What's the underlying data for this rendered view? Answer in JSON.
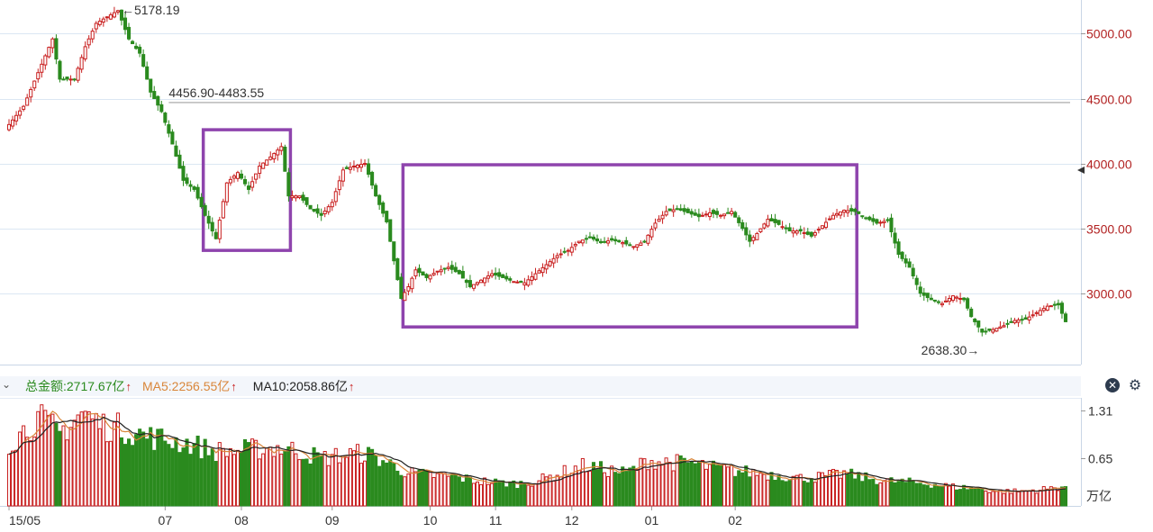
{
  "chart_data": {
    "type": "candlestick",
    "x_tick_labels": [
      "15/05",
      "07",
      "08",
      "09",
      "10",
      "11",
      "12",
      "01",
      "02"
    ],
    "y_tick_labels": [
      "3000.00",
      "3500.00",
      "4000.00",
      "4500.00",
      "5000.00"
    ],
    "y_ticks": [
      3000,
      3500,
      4000,
      4500,
      5000
    ],
    "ylim": [
      2450,
      5260
    ],
    "annotations": {
      "high": "←5178.19",
      "gap": "4456.90-4483.55",
      "low": "2638.30→"
    },
    "reference_line": 4470,
    "highlight_boxes": [
      {
        "from_day": 54,
        "to_day": 77,
        "low": 3330,
        "high": 4260
      },
      {
        "from_day": 109,
        "to_day": 233,
        "low": 2740,
        "high": 3990
      }
    ],
    "price_key_points": [
      [
        0,
        4300
      ],
      [
        4,
        4440
      ],
      [
        8,
        4700
      ],
      [
        12,
        4960
      ],
      [
        14,
        4650
      ],
      [
        18,
        4650
      ],
      [
        21,
        4900
      ],
      [
        24,
        5080
      ],
      [
        27,
        5130
      ],
      [
        30,
        5178
      ],
      [
        33,
        4960
      ],
      [
        36,
        4850
      ],
      [
        39,
        4550
      ],
      [
        42,
        4400
      ],
      [
        45,
        4150
      ],
      [
        48,
        3870
      ],
      [
        51,
        3800
      ],
      [
        54,
        3600
      ],
      [
        57,
        3420
      ],
      [
        60,
        3850
      ],
      [
        63,
        3930
      ],
      [
        66,
        3800
      ],
      [
        69,
        3980
      ],
      [
        72,
        4050
      ],
      [
        75,
        4130
      ],
      [
        77,
        3750
      ],
      [
        80,
        3750
      ],
      [
        83,
        3650
      ],
      [
        86,
        3600
      ],
      [
        89,
        3700
      ],
      [
        92,
        3950
      ],
      [
        95,
        3980
      ],
      [
        98,
        4000
      ],
      [
        101,
        3750
      ],
      [
        104,
        3550
      ],
      [
        106,
        3250
      ],
      [
        108,
        2960
      ],
      [
        110,
        3050
      ],
      [
        112,
        3180
      ],
      [
        115,
        3120
      ],
      [
        118,
        3170
      ],
      [
        121,
        3200
      ],
      [
        124,
        3150
      ],
      [
        127,
        3050
      ],
      [
        130,
        3100
      ],
      [
        133,
        3150
      ],
      [
        136,
        3120
      ],
      [
        139,
        3090
      ],
      [
        142,
        3080
      ],
      [
        145,
        3150
      ],
      [
        148,
        3220
      ],
      [
        151,
        3290
      ],
      [
        154,
        3330
      ],
      [
        157,
        3400
      ],
      [
        160,
        3430
      ],
      [
        163,
        3390
      ],
      [
        166,
        3410
      ],
      [
        169,
        3390
      ],
      [
        172,
        3360
      ],
      [
        175,
        3400
      ],
      [
        178,
        3540
      ],
      [
        181,
        3630
      ],
      [
        184,
        3650
      ],
      [
        187,
        3620
      ],
      [
        190,
        3590
      ],
      [
        193,
        3620
      ],
      [
        196,
        3600
      ],
      [
        199,
        3630
      ],
      [
        202,
        3500
      ],
      [
        204,
        3400
      ],
      [
        206,
        3460
      ],
      [
        209,
        3570
      ],
      [
        212,
        3530
      ],
      [
        215,
        3480
      ],
      [
        218,
        3480
      ],
      [
        221,
        3440
      ],
      [
        224,
        3520
      ],
      [
        227,
        3600
      ],
      [
        230,
        3640
      ],
      [
        233,
        3630
      ],
      [
        236,
        3580
      ],
      [
        239,
        3540
      ],
      [
        242,
        3560
      ],
      [
        245,
        3300
      ],
      [
        248,
        3200
      ],
      [
        251,
        3000
      ],
      [
        254,
        2950
      ],
      [
        257,
        2920
      ],
      [
        260,
        2980
      ],
      [
        263,
        2950
      ],
      [
        265,
        2820
      ],
      [
        268,
        2700
      ],
      [
        271,
        2720
      ],
      [
        274,
        2750
      ],
      [
        277,
        2790
      ],
      [
        280,
        2800
      ],
      [
        283,
        2850
      ],
      [
        286,
        2900
      ],
      [
        289,
        2910
      ],
      [
        291,
        2780
      ]
    ],
    "volume_axis": {
      "tick_labels": [
        "1.31",
        "0.65"
      ],
      "ticks": [
        1.31,
        0.65
      ],
      "unit": "万亿",
      "max": 1.48
    },
    "volume_key_points": [
      [
        0,
        0.85
      ],
      [
        8,
        1.2
      ],
      [
        14,
        1.0
      ],
      [
        20,
        1.28
      ],
      [
        26,
        1.1
      ],
      [
        32,
        1.05
      ],
      [
        38,
        0.95
      ],
      [
        44,
        0.9
      ],
      [
        50,
        0.85
      ],
      [
        56,
        0.75
      ],
      [
        62,
        0.75
      ],
      [
        68,
        0.78
      ],
      [
        74,
        0.8
      ],
      [
        80,
        0.75
      ],
      [
        86,
        0.65
      ],
      [
        92,
        0.7
      ],
      [
        98,
        0.72
      ],
      [
        104,
        0.6
      ],
      [
        110,
        0.45
      ],
      [
        116,
        0.42
      ],
      [
        122,
        0.4
      ],
      [
        128,
        0.35
      ],
      [
        134,
        0.32
      ],
      [
        140,
        0.3
      ],
      [
        146,
        0.35
      ],
      [
        152,
        0.45
      ],
      [
        158,
        0.55
      ],
      [
        164,
        0.5
      ],
      [
        170,
        0.45
      ],
      [
        176,
        0.62
      ],
      [
        182,
        0.6
      ],
      [
        188,
        0.58
      ],
      [
        194,
        0.52
      ],
      [
        200,
        0.48
      ],
      [
        206,
        0.45
      ],
      [
        212,
        0.42
      ],
      [
        218,
        0.38
      ],
      [
        224,
        0.4
      ],
      [
        230,
        0.44
      ],
      [
        236,
        0.38
      ],
      [
        242,
        0.34
      ],
      [
        248,
        0.32
      ],
      [
        254,
        0.3
      ],
      [
        260,
        0.26
      ],
      [
        266,
        0.24
      ],
      [
        272,
        0.2
      ],
      [
        278,
        0.2
      ],
      [
        284,
        0.22
      ],
      [
        291,
        0.27
      ]
    ],
    "volume_header": {
      "total_label": "总金额:2717.67亿",
      "ma5_label": "MA5:2256.55亿",
      "ma10_label": "MA10:2058.86亿",
      "arrow": "↑"
    },
    "colors": {
      "up": "#c81e1e",
      "down": "#2a8a1e",
      "highlight": "#8e44ad",
      "grid": "#dbe7f3",
      "axis_text": "#b22222",
      "ma5": "#d9863a",
      "ma10": "#222222",
      "total_text": "#2a8a1e",
      "ma5_text": "#d9863a",
      "ma10_text": "#222222"
    },
    "icons": {
      "collapse": "chevron-down-icon",
      "close": "close-icon",
      "settings": "gear-icon"
    }
  }
}
